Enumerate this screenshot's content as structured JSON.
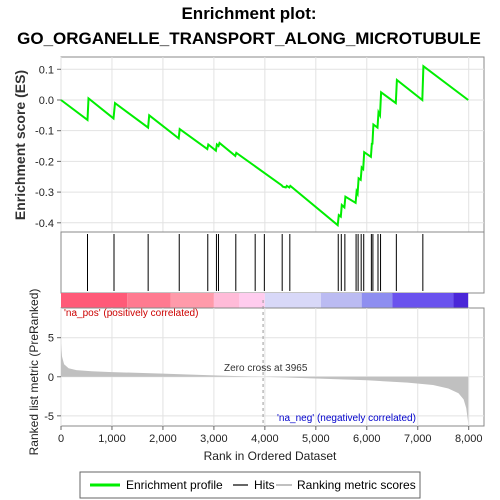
{
  "title_line1": "Enrichment plot:",
  "title_line2": "GO_ORGANELLE_TRANSPORT_ALONG_MICROTUBULE",
  "chart_data": {
    "type": "line",
    "es_panel": {
      "ylabel": "Enrichment score (ES)",
      "ylim": [
        -0.43,
        0.14
      ],
      "yticks": [
        0.1,
        0.0,
        -0.1,
        -0.2,
        -0.3,
        -0.4
      ],
      "ytick_labels": [
        "0.1",
        "0.0",
        "-0.1",
        "-0.2",
        "-0.3",
        "-0.4"
      ],
      "series": [
        {
          "name": "Enrichment profile",
          "color": "#00ee00",
          "x": [
            0,
            520,
            540,
            1030,
            1060,
            1710,
            1730,
            2310,
            2330,
            2870,
            2890,
            3040,
            3060,
            3090,
            3110,
            3420,
            3440,
            4330,
            4350,
            4410,
            4430,
            4480,
            4500,
            5430,
            5450,
            5490,
            5510,
            5560,
            5580,
            5780,
            5800,
            5820,
            5840,
            5880,
            5900,
            5930,
            5950,
            6080,
            6100,
            6110,
            6130,
            6210,
            6230,
            6260,
            6280,
            6570,
            6590,
            7090,
            7110,
            7990
          ],
          "y": [
            0.0,
            -0.065,
            0.005,
            -0.06,
            -0.01,
            -0.09,
            -0.05,
            -0.125,
            -0.095,
            -0.16,
            -0.145,
            -0.165,
            -0.145,
            -0.15,
            -0.14,
            -0.182,
            -0.172,
            -0.278,
            -0.282,
            -0.285,
            -0.28,
            -0.285,
            -0.28,
            -0.408,
            -0.375,
            -0.38,
            -0.342,
            -0.35,
            -0.315,
            -0.335,
            -0.298,
            -0.305,
            -0.255,
            -0.26,
            -0.22,
            -0.225,
            -0.17,
            -0.185,
            -0.14,
            -0.145,
            -0.08,
            -0.09,
            -0.04,
            -0.05,
            0.025,
            -0.01,
            0.065,
            0.0,
            0.11,
            0.0
          ]
        }
      ]
    },
    "hits": [
      520,
      1040,
      1710,
      2320,
      2880,
      3050,
      3090,
      3430,
      3810,
      3990,
      4340,
      4490,
      5440,
      5500,
      5570,
      5790,
      5830,
      5890,
      5940,
      6090,
      6120,
      6220,
      6270,
      6580,
      7100
    ],
    "color_bar": {
      "segments": [
        {
          "from": 0,
          "to": 1300,
          "color": "#ff5a78"
        },
        {
          "from": 1300,
          "to": 2150,
          "color": "#ff7a90"
        },
        {
          "from": 2150,
          "to": 3000,
          "color": "#ff9aaa"
        },
        {
          "from": 3000,
          "to": 3500,
          "color": "#ffbbd8"
        },
        {
          "from": 3500,
          "to": 4000,
          "color": "#ffccee"
        },
        {
          "from": 4000,
          "to": 5100,
          "color": "#d8d8f8"
        },
        {
          "from": 5100,
          "to": 5900,
          "color": "#bbbbf2"
        },
        {
          "from": 5900,
          "to": 6500,
          "color": "#8e8ef0"
        },
        {
          "from": 6500,
          "to": 7700,
          "color": "#6a52ee"
        },
        {
          "from": 7700,
          "to": 7990,
          "color": "#4a26d8"
        }
      ]
    },
    "rank_panel": {
      "ylabel": "Ranked list metric (PreRanked)",
      "xlabel": "Rank in Ordered Dataset",
      "ylim": [
        -6.3,
        8.8
      ],
      "yticks": [
        5,
        0,
        -5
      ],
      "ytick_labels": [
        "5",
        "0",
        "-5"
      ],
      "xlim": [
        0,
        8300
      ],
      "xticks": [
        0,
        1000,
        2000,
        3000,
        4000,
        5000,
        6000,
        7000,
        8000
      ],
      "xtick_labels": [
        "0",
        "1,000",
        "2,000",
        "3,000",
        "4,000",
        "5,000",
        "6,000",
        "7,000",
        "8,000"
      ],
      "metric_curve": {
        "x": [
          0,
          20,
          60,
          150,
          300,
          600,
          1000,
          2000,
          3000,
          3965,
          5000,
          6000,
          6800,
          7300,
          7600,
          7800,
          7900,
          7950,
          7990
        ],
        "y": [
          4.3,
          2.6,
          1.6,
          1.1,
          0.85,
          0.7,
          0.6,
          0.4,
          0.18,
          0.0,
          -0.22,
          -0.45,
          -0.75,
          -1.05,
          -1.5,
          -2.1,
          -2.9,
          -4.0,
          -5.9
        ]
      },
      "zero_cross": 3965
    },
    "annotations": {
      "pos": "'na_pos' (positively correlated)",
      "neg": "'na_neg' (negatively correlated)",
      "zero_cross": "Zero cross at 3965"
    },
    "legend": [
      {
        "label": "Enrichment profile",
        "color": "#00ee00"
      },
      {
        "label": "Hits",
        "color": "#000000"
      },
      {
        "label": "Ranking metric scores",
        "color": "#c0c0c0"
      }
    ]
  }
}
